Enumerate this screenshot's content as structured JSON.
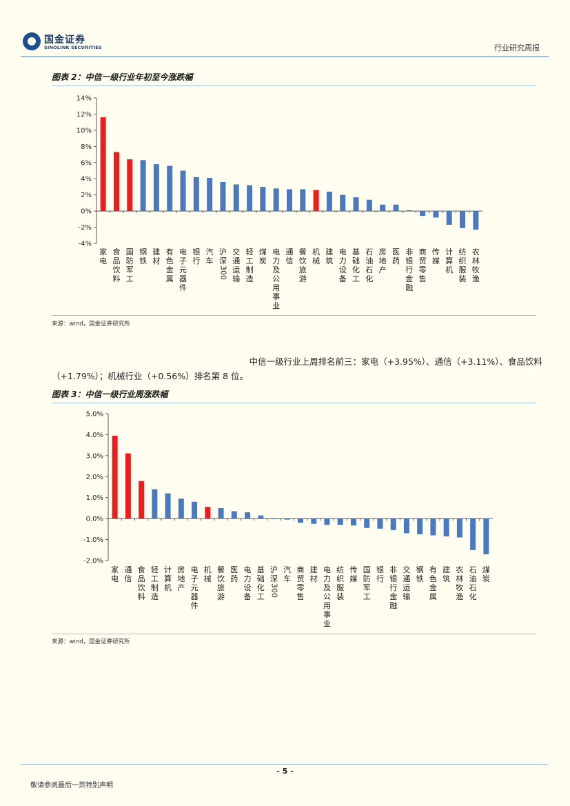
{
  "header": {
    "logo_cn": "国金证券",
    "logo_en": "SINOLINK SECURITIES",
    "report_type": "行业研究周报"
  },
  "figure2": {
    "title": "图表 2：中信一级行业年初至今涨跌幅",
    "source": "来源：wind，国金证券研究所"
  },
  "paragraph": {
    "line1": "中信一级行业上周排名前三：家电（+3.95%）、通信（+3.11%）、食品饮料",
    "line2": "（+1.79%）；机械行业（+0.56%）排名第 8 位。"
  },
  "figure3": {
    "title": "图表 3：中信一级行业周涨跌幅",
    "source": "来源：wind，国金证券研究所"
  },
  "footer": {
    "page": "- 5 -",
    "note": "敬请参阅最后一页特别声明"
  },
  "colors": {
    "highlight": "#ee1c1c",
    "normal": "#4a79bf",
    "rule": "#9bbdd9"
  },
  "chart_data": [
    {
      "type": "bar",
      "title": "中信一级行业年初至今涨跌幅",
      "categories": [
        "家电",
        "食品饮料",
        "国防军工",
        "钢铁",
        "建材",
        "有色金属",
        "电子元器件",
        "银行",
        "汽车",
        "沪深300",
        "交通运输",
        "轻工制造",
        "煤炭",
        "电力及公用事业",
        "通信",
        "餐饮旅游",
        "机械",
        "建筑",
        "电力设备",
        "基础化工",
        "石油石化",
        "房地产",
        "医药",
        "非银行金融",
        "商贸零售",
        "传媒",
        "计算机",
        "纺织服装",
        "农林牧渔"
      ],
      "values": [
        11.6,
        7.3,
        6.4,
        6.3,
        5.8,
        5.6,
        5.0,
        4.2,
        4.1,
        3.6,
        3.3,
        3.2,
        3.0,
        2.8,
        2.7,
        2.7,
        2.6,
        2.4,
        2.0,
        1.7,
        1.4,
        0.8,
        0.8,
        0.1,
        -0.6,
        -0.8,
        -1.7,
        -2.1,
        -2.3
      ],
      "highlight": [
        "家电",
        "食品饮料",
        "国防军工",
        "机械"
      ],
      "ylim": [
        -4,
        14
      ],
      "yticks": [
        -4,
        -2,
        0,
        2,
        4,
        6,
        8,
        10,
        12,
        14
      ],
      "ytick_labels": [
        "-4%",
        "-2%",
        "0%",
        "2%",
        "4%",
        "6%",
        "8%",
        "10%",
        "12%",
        "14%"
      ],
      "xlabel": "",
      "ylabel": ""
    },
    {
      "type": "bar",
      "title": "中信一级行业周涨跌幅",
      "categories": [
        "家电",
        "通信",
        "食品饮料",
        "轻工制造",
        "计算机",
        "房地产",
        "电子元器件",
        "机械",
        "餐饮旅游",
        "医药",
        "电力设备",
        "基础化工",
        "沪深300",
        "汽车",
        "商贸零售",
        "建材",
        "电力及公用事业",
        "纺织服装",
        "传媒",
        "国防军工",
        "银行",
        "非银行金融",
        "交通运输",
        "钢铁",
        "有色金属",
        "建筑",
        "农林牧渔",
        "石油石化",
        "煤炭"
      ],
      "values": [
        3.95,
        3.11,
        1.79,
        1.4,
        1.2,
        0.95,
        0.8,
        0.56,
        0.5,
        0.35,
        0.3,
        0.15,
        -0.02,
        -0.05,
        -0.2,
        -0.25,
        -0.3,
        -0.3,
        -0.33,
        -0.45,
        -0.48,
        -0.55,
        -0.7,
        -0.75,
        -0.8,
        -0.85,
        -0.9,
        -1.5,
        -1.7
      ],
      "highlight": [
        "家电",
        "通信",
        "食品饮料",
        "机械"
      ],
      "ylim": [
        -2,
        5
      ],
      "yticks": [
        -2,
        -1,
        0,
        1,
        2,
        3,
        4,
        5
      ],
      "ytick_labels": [
        "-2.0%",
        "-1.0%",
        "0.0%",
        "1.0%",
        "2.0%",
        "3.0%",
        "4.0%",
        "5.0%"
      ],
      "xlabel": "",
      "ylabel": ""
    }
  ]
}
